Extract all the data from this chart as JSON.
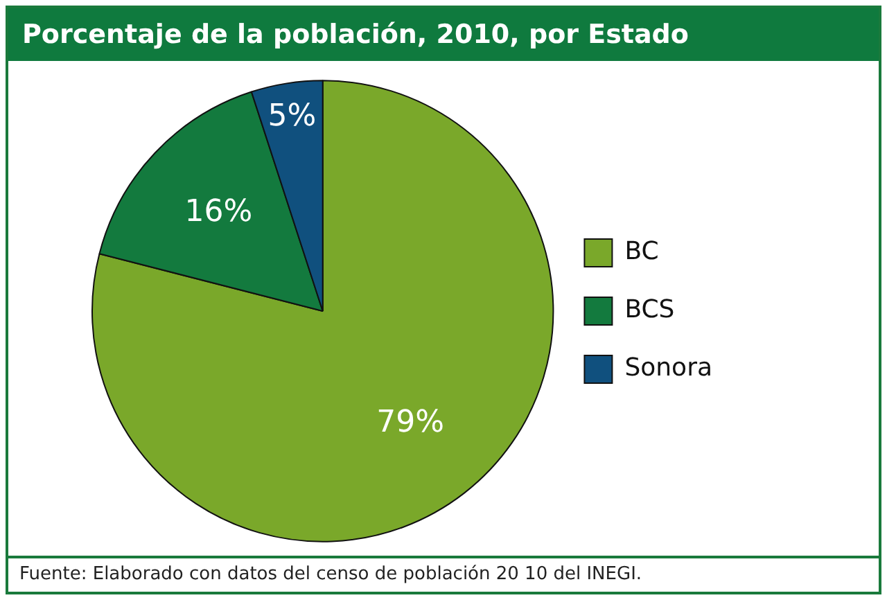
{
  "chart_data": {
    "type": "pie",
    "title": "Porcentaje de la población, 2010, por Estado",
    "categories": [
      "BC",
      "BCS",
      "Sonora"
    ],
    "values": [
      79,
      16,
      5
    ],
    "value_labels": [
      "79%",
      "16%",
      "5%"
    ],
    "colors": [
      "#7aa82a",
      "#137a3e",
      "#10507e"
    ],
    "legend": "right",
    "annotations": [
      "Fuente: Elaborado con datos del censo de población 20 10 del INEGI."
    ]
  }
}
